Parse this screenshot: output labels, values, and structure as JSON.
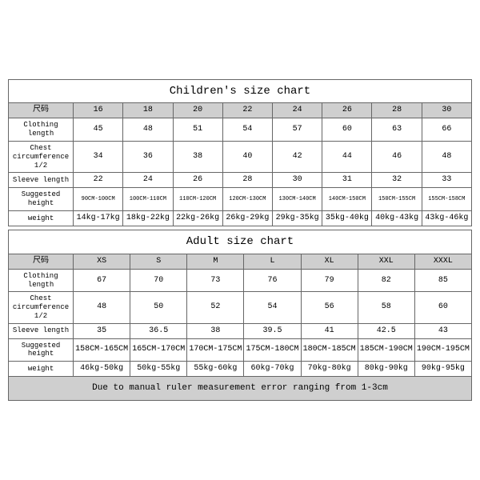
{
  "children": {
    "title": "Children's size chart",
    "header_label": "尺码",
    "sizes": [
      "16",
      "18",
      "20",
      "22",
      "24",
      "26",
      "28",
      "30"
    ],
    "rows": [
      {
        "label": "Clothing length",
        "vals": [
          "45",
          "48",
          "51",
          "54",
          "57",
          "60",
          "63",
          "66"
        ],
        "small": false
      },
      {
        "label": "Chest circumference 1/2",
        "vals": [
          "34",
          "36",
          "38",
          "40",
          "42",
          "44",
          "46",
          "48"
        ],
        "small": false
      },
      {
        "label": "Sleeve length",
        "vals": [
          "22",
          "24",
          "26",
          "28",
          "30",
          "31",
          "32",
          "33"
        ],
        "small": false
      },
      {
        "label": "Suggested height",
        "vals": [
          "90CM-100CM",
          "100CM-110CM",
          "110CM-120CM",
          "120CM-130CM",
          "130CM-140CM",
          "140CM-150CM",
          "150CM-155CM",
          "155CM-158CM"
        ],
        "small": true
      },
      {
        "label": "weight",
        "vals": [
          "14kg-17kg",
          "18kg-22kg",
          "22kg-26kg",
          "26kg-29kg",
          "29kg-35kg",
          "35kg-40kg",
          "40kg-43kg",
          "43kg-46kg"
        ],
        "small": false
      }
    ]
  },
  "adult": {
    "title": "Adult size chart",
    "header_label": "尺码",
    "sizes": [
      "XS",
      "S",
      "M",
      "L",
      "XL",
      "XXL",
      "XXXL"
    ],
    "rows": [
      {
        "label": "Clothing length",
        "vals": [
          "67",
          "70",
          "73",
          "76",
          "79",
          "82",
          "85"
        ],
        "small": false
      },
      {
        "label": "Chest circumference 1/2",
        "vals": [
          "48",
          "50",
          "52",
          "54",
          "56",
          "58",
          "60"
        ],
        "small": false
      },
      {
        "label": "Sleeve length",
        "vals": [
          "35",
          "36.5",
          "38",
          "39.5",
          "41",
          "42.5",
          "43"
        ],
        "small": false
      },
      {
        "label": "Suggested height",
        "vals": [
          "158CM-165CM",
          "165CM-170CM",
          "170CM-175CM",
          "175CM-180CM",
          "180CM-185CM",
          "185CM-190CM",
          "190CM-195CM"
        ],
        "small": false
      },
      {
        "label": "weight",
        "vals": [
          "46kg-50kg",
          "50kg-55kg",
          "55kg-60kg",
          "60kg-70kg",
          "70kg-80kg",
          "80kg-90kg",
          "90kg-95kg"
        ],
        "small": false
      }
    ]
  },
  "note": "Due to manual ruler measurement error ranging from 1-3cm",
  "colors": {
    "header_bg": "#cfcfcf",
    "border": "#666666",
    "bg": "#ffffff"
  }
}
